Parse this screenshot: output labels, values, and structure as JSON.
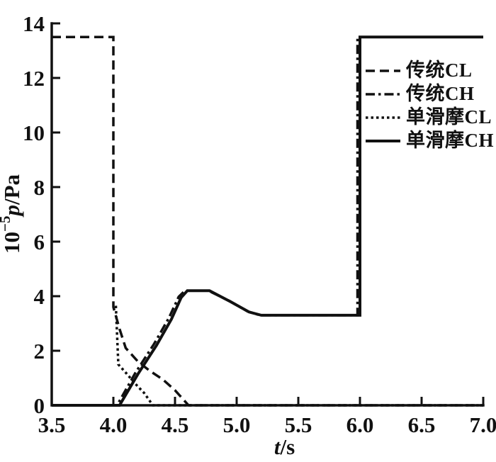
{
  "figure": {
    "background": "#ffffff",
    "ink_color": "#111111"
  },
  "chart_data": {
    "type": "line",
    "title": "",
    "xlabel": "t/s",
    "ylabel": "10^-5 p/Pa",
    "xlabel_parts": {
      "symbol": "t",
      "unit": "/s"
    },
    "ylabel_parts": {
      "base": "10",
      "exponent": "−5",
      "symbol": "p",
      "unit": "/Pa"
    },
    "xlim": [
      3.5,
      7.0
    ],
    "ylim": [
      0,
      14
    ],
    "x_ticks": [
      3.5,
      4.0,
      4.5,
      5.0,
      5.5,
      6.0,
      6.5,
      7.0
    ],
    "y_ticks": [
      0,
      2,
      4,
      6,
      8,
      10,
      12,
      14
    ],
    "grid": false,
    "frame": "left-bottom-axes-only",
    "legend_position": "upper-right-inside",
    "series": [
      {
        "name": "chuantong-CL",
        "label": "传统CL",
        "line_style": "dashed",
        "points": [
          [
            3.5,
            13.5
          ],
          [
            4.0,
            13.5
          ],
          [
            4.0,
            3.6
          ],
          [
            4.05,
            2.8
          ],
          [
            4.1,
            2.1
          ],
          [
            4.2,
            1.6
          ],
          [
            4.3,
            1.25
          ],
          [
            4.4,
            0.95
          ],
          [
            4.5,
            0.55
          ],
          [
            4.61,
            0
          ],
          [
            7.0,
            0
          ]
        ]
      },
      {
        "name": "chuantong-CH",
        "label": "传统CH",
        "line_style": "dashdot",
        "points": [
          [
            3.5,
            0
          ],
          [
            4.03,
            0
          ],
          [
            4.18,
            1.2
          ],
          [
            4.33,
            2.25
          ],
          [
            4.45,
            3.2
          ],
          [
            4.53,
            3.98
          ],
          [
            4.58,
            4.2
          ],
          [
            4.77,
            4.2
          ],
          [
            4.94,
            3.83
          ],
          [
            5.09,
            3.44
          ],
          [
            5.19,
            3.3
          ],
          [
            5.98,
            3.3
          ],
          [
            5.98,
            13.5
          ],
          [
            7.0,
            13.5
          ]
        ]
      },
      {
        "name": "danhuamo-CL",
        "label": "单滑摩CL",
        "line_style": "dotted",
        "points": [
          [
            4.02,
            3.65
          ],
          [
            4.04,
            1.5
          ],
          [
            4.1,
            1.2
          ],
          [
            4.18,
            0.78
          ],
          [
            4.25,
            0.45
          ],
          [
            4.32,
            0
          ],
          [
            7.0,
            0
          ]
        ]
      },
      {
        "name": "danhuamo-CH",
        "label": "单滑摩CH",
        "line_style": "solid",
        "points": [
          [
            3.5,
            0
          ],
          [
            4.05,
            0
          ],
          [
            4.2,
            1.15
          ],
          [
            4.35,
            2.2
          ],
          [
            4.47,
            3.15
          ],
          [
            4.55,
            3.95
          ],
          [
            4.6,
            4.2
          ],
          [
            4.78,
            4.2
          ],
          [
            4.95,
            3.8
          ],
          [
            5.1,
            3.42
          ],
          [
            5.2,
            3.3
          ],
          [
            6.0,
            3.3
          ],
          [
            6.0,
            13.5
          ],
          [
            7.0,
            13.5
          ]
        ]
      }
    ],
    "annotations": {
      "initial_pressure": 13.5,
      "peak_CH_pressure": 4.2,
      "hold_CH_pressure": 3.3,
      "CL_release_start_time": 4.0,
      "CH_lockup_time": 6.0
    }
  }
}
